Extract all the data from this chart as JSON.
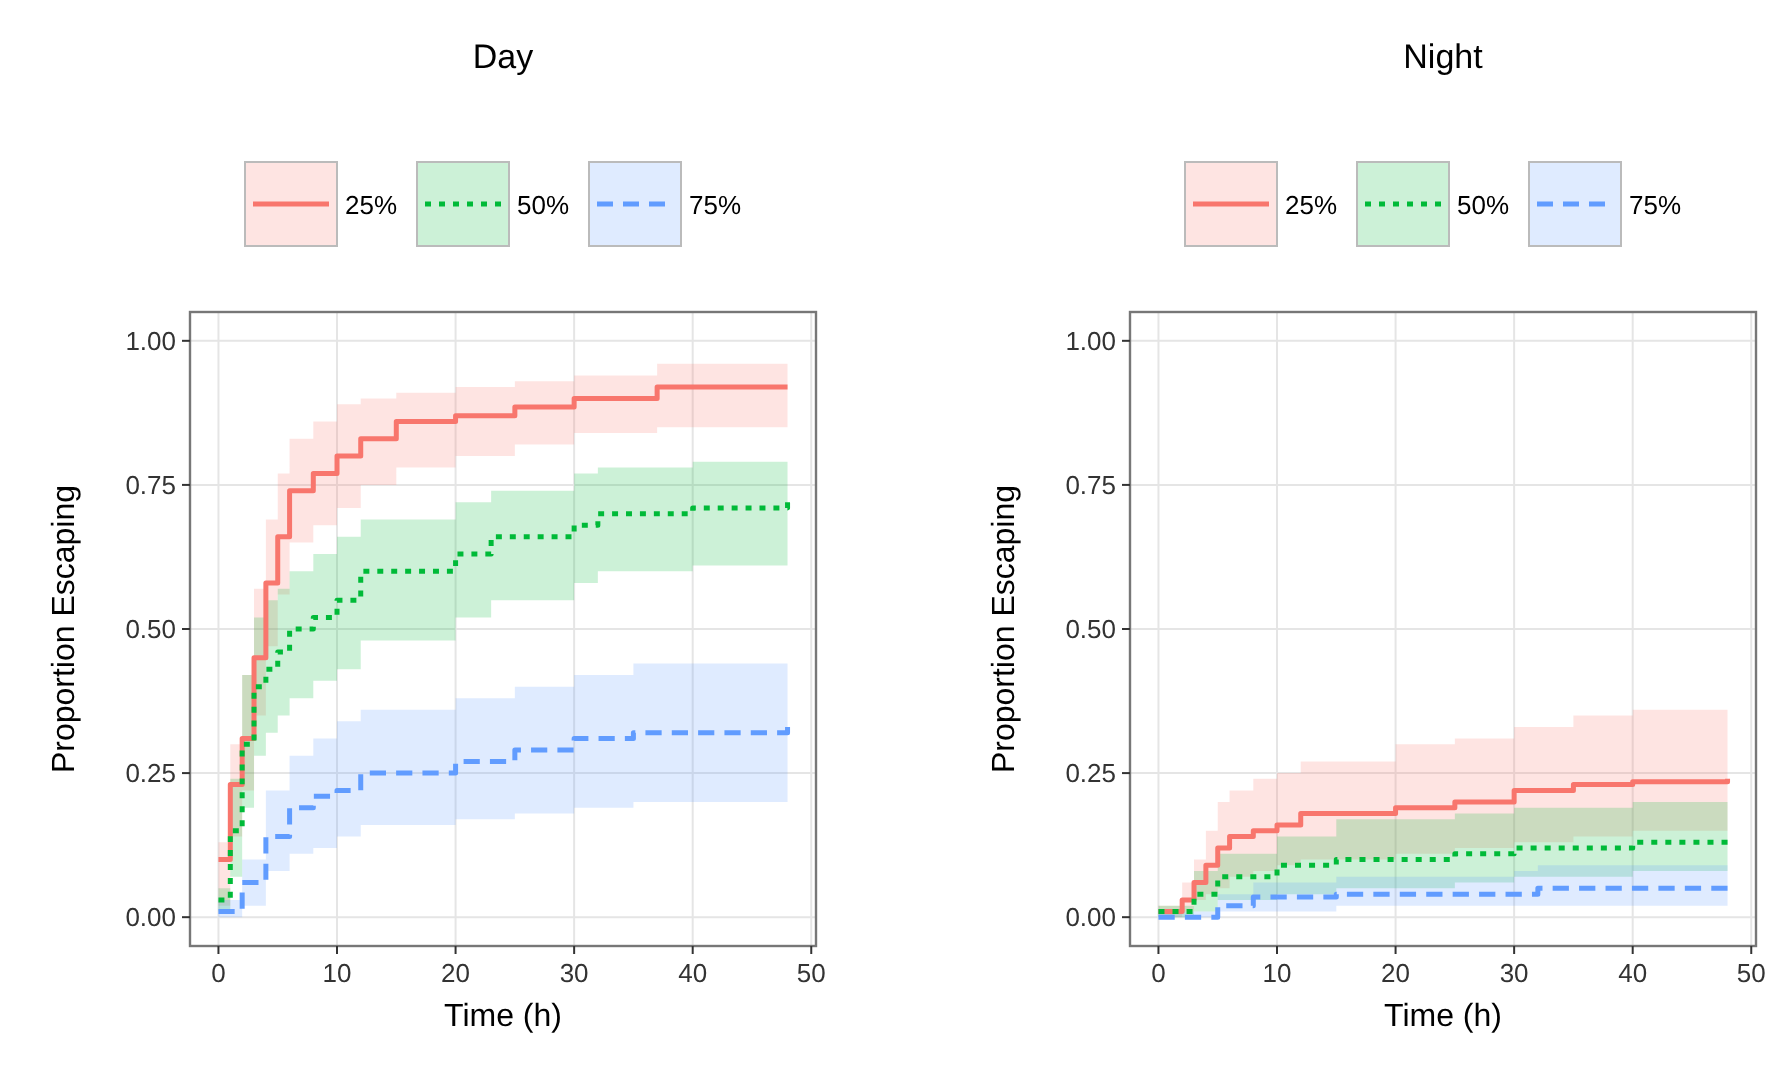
{
  "chart_data": [
    {
      "type": "step",
      "title": "Day",
      "xlabel": "Time (h)",
      "ylabel": "Proportion Escaping",
      "xlim": [
        -2.4,
        50.4
      ],
      "ylim": [
        -0.05,
        1.05
      ],
      "xticks": [
        0,
        10,
        20,
        30,
        40,
        50
      ],
      "yticks": [
        {
          "value": 0,
          "label": "0.00"
        },
        {
          "value": 0.25,
          "label": "0.25"
        },
        {
          "value": 0.5,
          "label": "0.50"
        },
        {
          "value": 0.75,
          "label": "0.75"
        },
        {
          "value": 1,
          "label": "1.00"
        }
      ],
      "grid": true,
      "legend": "top",
      "series": [
        {
          "name": "25%",
          "color": "#f8766d",
          "line_style": "solid",
          "x": [
            0,
            1,
            2,
            3,
            4,
            5,
            6,
            8,
            10,
            12,
            15,
            20,
            25,
            30,
            37,
            48
          ],
          "values": [
            0.1,
            0.23,
            0.31,
            0.45,
            0.58,
            0.66,
            0.74,
            0.77,
            0.8,
            0.83,
            0.86,
            0.87,
            0.885,
            0.9,
            0.92,
            0.92
          ],
          "lower": [
            0.02,
            0.14,
            0.22,
            0.35,
            0.47,
            0.56,
            0.65,
            0.68,
            0.71,
            0.75,
            0.78,
            0.8,
            0.82,
            0.84,
            0.85,
            0.85
          ],
          "upper": [
            0.13,
            0.3,
            0.42,
            0.57,
            0.69,
            0.77,
            0.83,
            0.86,
            0.89,
            0.9,
            0.91,
            0.92,
            0.93,
            0.94,
            0.96,
            0.96
          ]
        },
        {
          "name": "50%",
          "color": "#00ba38",
          "line_style": "dotted",
          "x": [
            0,
            1,
            2,
            3,
            4,
            5,
            6,
            8,
            10,
            12,
            20,
            23,
            30,
            32,
            40,
            48
          ],
          "values": [
            0.03,
            0.15,
            0.3,
            0.4,
            0.43,
            0.46,
            0.5,
            0.52,
            0.55,
            0.6,
            0.63,
            0.66,
            0.68,
            0.7,
            0.71,
            0.72
          ],
          "lower": [
            0.01,
            0.07,
            0.19,
            0.28,
            0.32,
            0.35,
            0.38,
            0.41,
            0.43,
            0.48,
            0.52,
            0.55,
            0.58,
            0.6,
            0.61,
            0.62
          ],
          "upper": [
            0.05,
            0.24,
            0.42,
            0.52,
            0.55,
            0.57,
            0.6,
            0.63,
            0.66,
            0.69,
            0.72,
            0.74,
            0.77,
            0.78,
            0.79,
            0.8
          ]
        },
        {
          "name": "75%",
          "color": "#619cff",
          "line_style": "dashed",
          "x": [
            0,
            2,
            4,
            6,
            8,
            10,
            12,
            20,
            25,
            30,
            35,
            48
          ],
          "values": [
            0.01,
            0.06,
            0.14,
            0.19,
            0.21,
            0.22,
            0.25,
            0.27,
            0.29,
            0.31,
            0.32,
            0.33
          ],
          "lower": [
            0.0,
            0.02,
            0.08,
            0.11,
            0.12,
            0.14,
            0.16,
            0.17,
            0.18,
            0.19,
            0.2,
            0.2
          ],
          "upper": [
            0.03,
            0.1,
            0.22,
            0.28,
            0.31,
            0.34,
            0.36,
            0.38,
            0.4,
            0.42,
            0.44,
            0.44
          ]
        }
      ]
    },
    {
      "type": "step",
      "title": "Night",
      "xlabel": "Time (h)",
      "ylabel": "Proportion Escaping",
      "xlim": [
        -2.4,
        50.4
      ],
      "ylim": [
        -0.05,
        1.05
      ],
      "xticks": [
        0,
        10,
        20,
        30,
        40,
        50
      ],
      "yticks": [
        {
          "value": 0,
          "label": "0.00"
        },
        {
          "value": 0.25,
          "label": "0.25"
        },
        {
          "value": 0.5,
          "label": "0.50"
        },
        {
          "value": 0.75,
          "label": "0.75"
        },
        {
          "value": 1,
          "label": "1.00"
        }
      ],
      "grid": true,
      "legend": "top",
      "series": [
        {
          "name": "25%",
          "color": "#f8766d",
          "line_style": "solid",
          "x": [
            0,
            2,
            3,
            4,
            5,
            6,
            8,
            10,
            12,
            20,
            25,
            30,
            35,
            40,
            48
          ],
          "values": [
            0.01,
            0.03,
            0.06,
            0.09,
            0.12,
            0.14,
            0.15,
            0.16,
            0.18,
            0.19,
            0.2,
            0.22,
            0.23,
            0.235,
            0.24
          ],
          "lower": [
            0.0,
            0.01,
            0.03,
            0.04,
            0.05,
            0.07,
            0.08,
            0.09,
            0.1,
            0.11,
            0.12,
            0.13,
            0.14,
            0.15,
            0.15
          ],
          "upper": [
            0.02,
            0.06,
            0.1,
            0.15,
            0.2,
            0.22,
            0.24,
            0.25,
            0.27,
            0.3,
            0.31,
            0.33,
            0.35,
            0.36,
            0.36
          ]
        },
        {
          "name": "50%",
          "color": "#00ba38",
          "line_style": "dotted",
          "x": [
            0,
            3,
            5,
            10,
            15,
            25,
            30,
            40,
            48
          ],
          "values": [
            0.01,
            0.04,
            0.07,
            0.09,
            0.1,
            0.11,
            0.12,
            0.13,
            0.13
          ],
          "lower": [
            0.0,
            0.01,
            0.03,
            0.04,
            0.05,
            0.06,
            0.07,
            0.08,
            0.08
          ],
          "upper": [
            0.02,
            0.08,
            0.11,
            0.14,
            0.17,
            0.18,
            0.19,
            0.2,
            0.2
          ]
        },
        {
          "name": "75%",
          "color": "#619cff",
          "line_style": "dashed",
          "x": [
            0,
            5,
            8,
            15,
            30,
            32,
            48
          ],
          "values": [
            0.0,
            0.02,
            0.035,
            0.04,
            0.04,
            0.05,
            0.05
          ],
          "lower": [
            0.0,
            0.01,
            0.01,
            0.02,
            0.02,
            0.02,
            0.02
          ],
          "upper": [
            0.01,
            0.04,
            0.06,
            0.07,
            0.08,
            0.09,
            0.09
          ]
        }
      ]
    }
  ]
}
